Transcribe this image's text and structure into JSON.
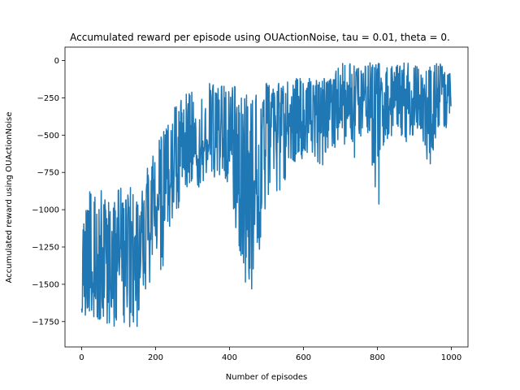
{
  "chart_data": {
    "type": "line",
    "title": "Accumulated reward per episode using OUActionNoise, tau = 0.01, theta = 0.",
    "xlabel": "Number of episodes",
    "ylabel": "Accumulated reward using OUActionNoise",
    "xlim": [
      -45,
      1045
    ],
    "ylim": [
      -1920,
      90
    ],
    "xticks": [
      0,
      200,
      400,
      600,
      800,
      1000
    ],
    "yticks": [
      0,
      -250,
      -500,
      -750,
      -1000,
      -1250,
      -1500,
      -1750
    ],
    "xtick_labels": [
      "0",
      "200",
      "400",
      "600",
      "800",
      "1000"
    ],
    "ytick_labels": [
      "0",
      "−250",
      "−500",
      "−750",
      "−1000",
      "−1250",
      "−1500",
      "−1750"
    ],
    "grid": false,
    "color": "#1f77b4",
    "series": [
      {
        "x": [
          0,
          20,
          40,
          60,
          80,
          100,
          120,
          140,
          160,
          180,
          200,
          220,
          240,
          260,
          280,
          300,
          320,
          340,
          360,
          380,
          400,
          420,
          440,
          460,
          480,
          500,
          520,
          540,
          560,
          580,
          600,
          620,
          640,
          660,
          680,
          700,
          720,
          740,
          760,
          780,
          800,
          820,
          840,
          860,
          880,
          900,
          920,
          940,
          960,
          980,
          999
        ],
        "y": [
          -1650,
          -1450,
          -1500,
          -1350,
          -1450,
          -1300,
          -1400,
          -1300,
          -1350,
          -1150,
          -1050,
          -850,
          -850,
          -700,
          -650,
          -600,
          -600,
          -500,
          -500,
          -500,
          -550,
          -700,
          -1050,
          -950,
          -850,
          -400,
          -400,
          -450,
          -380,
          -380,
          -400,
          -380,
          -350,
          -300,
          -280,
          -250,
          -280,
          -250,
          -250,
          -230,
          -250,
          -220,
          -230,
          -200,
          -220,
          -200,
          -200,
          -200,
          -210,
          -200,
          -200
        ],
        "y_max": [
          -1230,
          -750,
          -900,
          -850,
          -950,
          -850,
          -850,
          -850,
          -900,
          -700,
          -580,
          -450,
          -350,
          -250,
          -200,
          -180,
          -160,
          -150,
          -150,
          -150,
          -150,
          -160,
          -200,
          -200,
          -250,
          -150,
          -150,
          -140,
          -130,
          -120,
          -120,
          -110,
          -110,
          -110,
          -100,
          -10,
          -20,
          -20,
          -20,
          -10,
          -10,
          -20,
          -30,
          -20,
          -10,
          -20,
          -10,
          -30,
          -20,
          -10,
          -100
        ],
        "y_min": [
          -1720,
          -1700,
          -1750,
          -1780,
          -1800,
          -1800,
          -1750,
          -1840,
          -1750,
          -1500,
          -1500,
          -1400,
          -1300,
          -1000,
          -900,
          -850,
          -850,
          -800,
          -800,
          -800,
          -850,
          -1250,
          -1500,
          -1560,
          -1300,
          -1000,
          -950,
          -900,
          -750,
          -700,
          -650,
          -650,
          -700,
          -700,
          -650,
          -600,
          -550,
          -700,
          -500,
          -550,
          -1070,
          -550,
          -500,
          -500,
          -550,
          -500,
          -500,
          -760,
          -500,
          -480,
          -480
        ]
      }
    ]
  }
}
